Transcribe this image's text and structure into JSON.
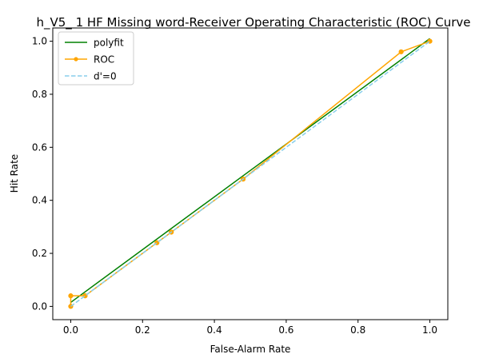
{
  "chart_data": {
    "type": "line",
    "title": "h_V5_ 1 HF Missing word-Receiver Operating Characteristic (ROC) Curve",
    "xlabel": "False-Alarm Rate",
    "ylabel": "Hit Rate",
    "xlim": [
      -0.05,
      1.05
    ],
    "ylim": [
      -0.05,
      1.05
    ],
    "xticks": [
      0.0,
      0.2,
      0.4,
      0.6,
      0.8,
      1.0
    ],
    "yticks": [
      0.0,
      0.2,
      0.4,
      0.6,
      0.8,
      1.0
    ],
    "xtick_labels": [
      "0.0",
      "0.2",
      "0.4",
      "0.6",
      "0.8",
      "1.0"
    ],
    "ytick_labels": [
      "0.0",
      "0.2",
      "0.4",
      "0.6",
      "0.8",
      "1.0"
    ],
    "grid": false,
    "legend_position": "top-left",
    "series": [
      {
        "name": "polyfit",
        "style": "solid",
        "marker": "none",
        "color": "#008000",
        "x": [
          0.0,
          1.0
        ],
        "y": [
          0.015,
          1.01
        ]
      },
      {
        "name": "ROC",
        "style": "solid",
        "marker": "circle",
        "color": "#ffa500",
        "x": [
          0.0,
          0.0,
          0.04,
          0.04,
          0.24,
          0.28,
          0.48,
          0.92,
          1.0
        ],
        "y": [
          0.0,
          0.04,
          0.04,
          0.04,
          0.24,
          0.28,
          0.48,
          0.96,
          1.0
        ]
      },
      {
        "name": "d'=0",
        "style": "dashed",
        "marker": "none",
        "color": "#87ceeb",
        "x": [
          0.0,
          1.0
        ],
        "y": [
          0.0,
          1.0
        ]
      }
    ]
  }
}
